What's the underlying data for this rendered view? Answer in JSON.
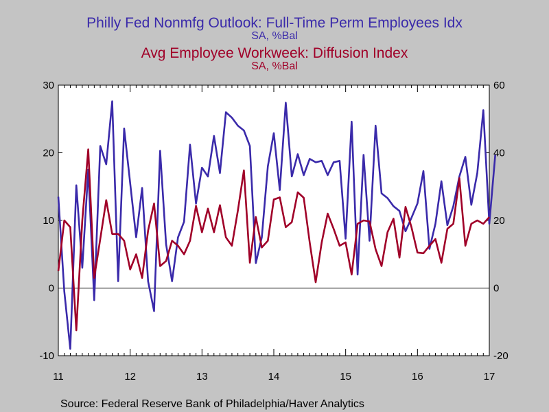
{
  "chart_data": {
    "type": "line",
    "title": "Philly Fed Nonmfg Outlook: Full-Time Perm Employees Idx",
    "title_units": "SA, %Bal",
    "subtitle": "Avg Employee Workweek: Diffusion Index",
    "subtitle_units": "SA, %Bal",
    "source": "Source:  Federal Reserve Bank of Philadelphia/Haver Analytics",
    "x_tick_labels": [
      "11",
      "12",
      "13",
      "14",
      "15",
      "16",
      "17"
    ],
    "x_range": [
      2011.0,
      2017.0
    ],
    "left_axis": {
      "range": [
        -10,
        30
      ],
      "ticks": [
        -10,
        0,
        10,
        20,
        30
      ]
    },
    "right_axis": {
      "range": [
        -20,
        60
      ],
      "ticks": [
        -20,
        0,
        20,
        40,
        60
      ]
    },
    "zero_line": true,
    "grid": false,
    "colors": {
      "background": "#c4c4c4",
      "plot_bg": "#ffffff",
      "series1": "#3a2aaa",
      "series2": "#a00028"
    },
    "series": [
      {
        "name": "Philly Fed Nonmfg Outlook: Full-Time Perm Employees Idx",
        "axis": "left",
        "color": "#3a2aaa",
        "x_start": 2011.0,
        "x_step": 0.08333,
        "values": [
          13.5,
          -0.5,
          -9.0,
          15.2,
          3.0,
          17.5,
          -1.8,
          21.0,
          18.3,
          27.6,
          1.0,
          23.6,
          15.5,
          7.5,
          14.8,
          1.0,
          -3.4,
          20.3,
          6.5,
          1.0,
          7.5,
          9.8,
          21.2,
          12.5,
          17.8,
          16.5,
          22.5,
          17.0,
          26.0,
          25.2,
          24.0,
          23.3,
          21.0,
          3.7,
          7.5,
          18.0,
          22.9,
          14.5,
          27.4,
          16.5,
          19.8,
          16.7,
          19.1,
          18.6,
          18.8,
          16.7,
          18.6,
          18.8,
          7.3,
          24.6,
          2.0,
          19.7,
          7.0,
          24.0,
          14.0,
          13.3,
          12.1,
          11.4,
          8.4,
          10.4,
          12.5,
          17.3,
          5.8,
          9.5,
          15.8,
          9.3,
          12.1,
          16.5,
          19.4,
          12.3,
          17.0,
          26.3,
          9.5,
          19.7
        ]
      },
      {
        "name": "Avg Employee Workweek: Diffusion Index",
        "axis": "right",
        "color": "#a00028",
        "x_start": 2011.0,
        "x_step": 0.08333,
        "values": [
          5.0,
          20.0,
          18.0,
          -12.5,
          20.0,
          41.0,
          3.0,
          14.5,
          26.0,
          16.0,
          16.0,
          14.0,
          5.5,
          10.0,
          3.0,
          17.0,
          25.0,
          6.5,
          8.0,
          14.0,
          12.5,
          10.0,
          14.0,
          24.3,
          16.5,
          23.5,
          16.5,
          24.5,
          15.0,
          12.5,
          23.0,
          34.8,
          7.5,
          21.0,
          12.0,
          14.0,
          26.2,
          26.8,
          18.0,
          19.5,
          28.3,
          26.7,
          13.5,
          1.7,
          13.5,
          22.0,
          17.5,
          12.5,
          13.5,
          4.0,
          19.0,
          20.0,
          19.7,
          11.5,
          6.5,
          16.5,
          20.5,
          9.0,
          24.0,
          18.0,
          10.5,
          10.3,
          12.5,
          14.5,
          7.5,
          17.5,
          19.0,
          32.5,
          12.5,
          19.0,
          20.0,
          19.0,
          21.0
        ]
      }
    ]
  }
}
